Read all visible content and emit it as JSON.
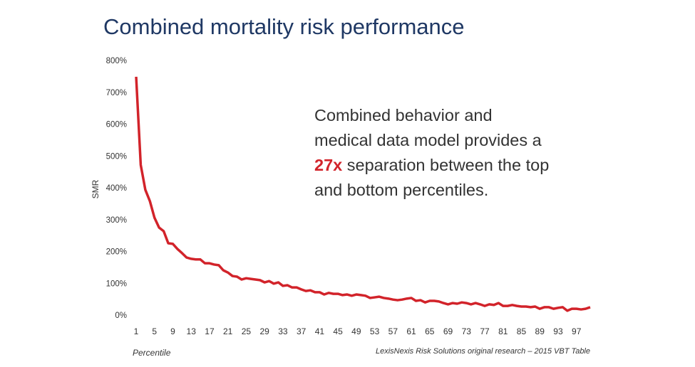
{
  "chart_data": {
    "type": "line",
    "title": "Combined mortality risk performance",
    "y_label": "SMR",
    "x_label": "Percentile",
    "source": "LexisNexis Risk Solutions original research – 2015 VBT Table",
    "annotation": {
      "text_1": "Combined behavior and medical data model provides a",
      "highlight": "27x",
      "text_2": "separation between the top and bottom percentiles."
    },
    "color": "#d2232a",
    "x": [
      1,
      2,
      3,
      4,
      5,
      6,
      7,
      8,
      9,
      10,
      11,
      12,
      13,
      14,
      15,
      16,
      17,
      18,
      19,
      20,
      21,
      22,
      23,
      24,
      25,
      26,
      27,
      28,
      29,
      30,
      31,
      32,
      33,
      34,
      35,
      36,
      37,
      38,
      39,
      40,
      41,
      42,
      43,
      44,
      45,
      46,
      47,
      48,
      49,
      50,
      51,
      52,
      53,
      54,
      55,
      56,
      57,
      58,
      59,
      60,
      61,
      62,
      63,
      64,
      65,
      66,
      67,
      68,
      69,
      70,
      71,
      72,
      73,
      74,
      75,
      76,
      77,
      78,
      79,
      80,
      81,
      82,
      83,
      84,
      85,
      86,
      87,
      88,
      89,
      90,
      91,
      92,
      93,
      94,
      95,
      96,
      97,
      98,
      99,
      100
    ],
    "values": [
      751,
      474,
      396,
      360,
      308,
      277,
      266,
      228,
      226,
      210,
      197,
      183,
      179,
      177,
      177,
      165,
      165,
      161,
      159,
      143,
      136,
      125,
      123,
      114,
      118,
      116,
      114,
      112,
      105,
      109,
      101,
      105,
      94,
      96,
      89,
      89,
      83,
      78,
      80,
      74,
      74,
      67,
      72,
      69,
      69,
      65,
      67,
      63,
      67,
      65,
      63,
      56,
      58,
      60,
      56,
      54,
      51,
      49,
      51,
      54,
      56,
      47,
      49,
      42,
      47,
      47,
      45,
      40,
      36,
      40,
      38,
      42,
      40,
      36,
      40,
      36,
      31,
      36,
      34,
      40,
      31,
      31,
      34,
      31,
      29,
      29,
      27,
      29,
      22,
      27,
      27,
      22,
      25,
      27,
      16,
      22,
      22,
      20,
      22,
      27
    ],
    "xlim": [
      1,
      100
    ],
    "xticks": [
      1,
      5,
      9,
      13,
      17,
      21,
      25,
      29,
      33,
      37,
      41,
      45,
      49,
      53,
      57,
      61,
      65,
      69,
      73,
      77,
      81,
      85,
      89,
      93,
      97
    ],
    "ylim": [
      0,
      800
    ],
    "yticks": [
      {
        "value": 0,
        "label": "0%"
      },
      {
        "value": 100,
        "label": "100%"
      },
      {
        "value": 200,
        "label": "200%"
      },
      {
        "value": 300,
        "label": "300%"
      },
      {
        "value": 400,
        "label": "400%"
      },
      {
        "value": 500,
        "label": "500%"
      },
      {
        "value": 600,
        "label": "600%"
      },
      {
        "value": 700,
        "label": "700%"
      },
      {
        "value": 800,
        "label": "800%"
      }
    ]
  }
}
